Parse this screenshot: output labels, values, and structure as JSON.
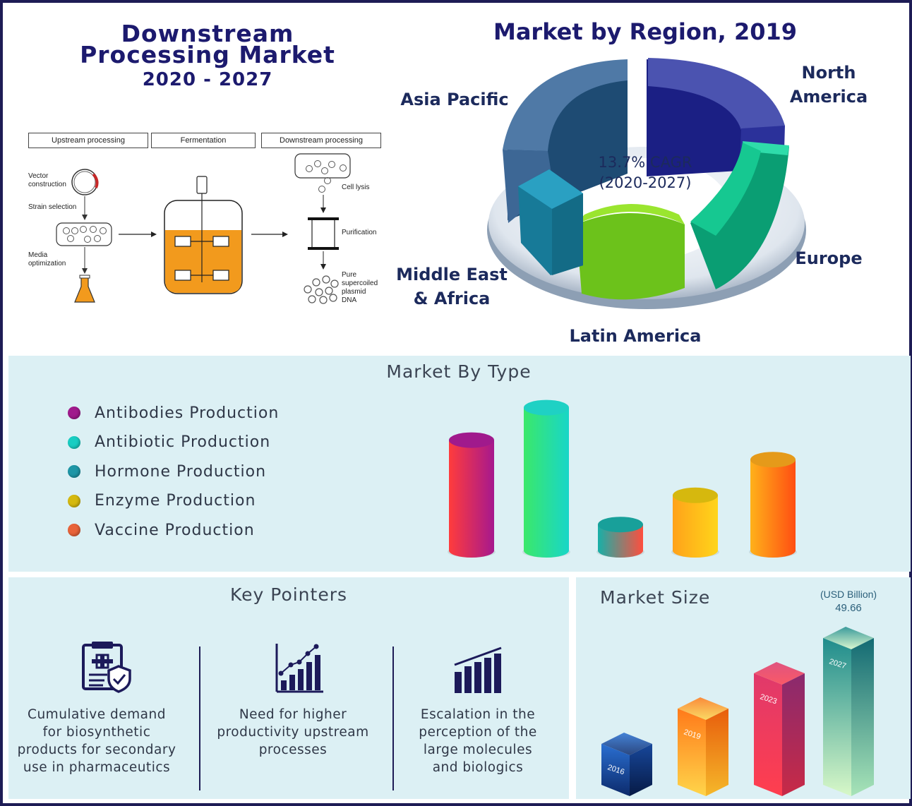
{
  "title": {
    "line1": "Downstream",
    "line2": "Processing Market",
    "years": "2020 - 2027"
  },
  "process": {
    "stage_upstream": "Upstream processing",
    "stage_fermentation": "Fermentation",
    "stage_downstream": "Downstream processing",
    "vector_construction": [
      "Vector",
      "construction"
    ],
    "strain_selection": "Strain selection",
    "media_optimization": [
      "Media",
      "optimization"
    ],
    "cell_lysis": "Cell lysis",
    "purification": "Purification",
    "plasmid": [
      "Pure",
      "supercoiled",
      "plasmid",
      "DNA"
    ],
    "colors": {
      "fill": "#f29a1d",
      "outline": "#222222"
    }
  },
  "region": {
    "title": "Market by Region, 2019",
    "cagr_line1": "13.7% CAGR",
    "cagr_line2": "(2020-2027)",
    "labels": {
      "north_america": [
        "North",
        "America"
      ],
      "asia_pacific": "Asia Pacific",
      "europe": "Europe",
      "mea": [
        "Middle East",
        "& Africa"
      ],
      "latin_america": "Latin America"
    },
    "colors": {
      "north_america": "#23268f",
      "asia_pacific": "#2d5a8a",
      "europe": "#0fb985",
      "mea": "#1c86a8",
      "latin_america": "#7fd41b"
    }
  },
  "type_section": {
    "title": "Market By Type",
    "legend": [
      {
        "label": "Antibodies Production",
        "color": "#a01a8c"
      },
      {
        "label": "Antibiotic Production",
        "color": "#18cdc2"
      },
      {
        "label": "Hormone Production",
        "color": "#1e96a6"
      },
      {
        "label": "Enzyme Production",
        "color": "#d5b90f"
      },
      {
        "label": "Vaccine Production",
        "color": "#e8633a"
      }
    ]
  },
  "chart_data": [
    {
      "type": "bar",
      "title": "Market By Type",
      "categories": [
        "Antibodies Production",
        "Antibiotic Production",
        "Hormone Production",
        "Enzyme Production",
        "Vaccine Production"
      ],
      "values": [
        68,
        88,
        16,
        34,
        56
      ],
      "unit": "relative share (not labeled)",
      "grid": false,
      "legend_position": "left"
    },
    {
      "type": "bar",
      "title": "Market Size",
      "categories": [
        "2016",
        "2019",
        "2023",
        "2027"
      ],
      "values": [
        null,
        null,
        null,
        49.66
      ],
      "unit_label": "(USD Billion)",
      "value_label": "49.66",
      "grid": false
    }
  ],
  "key_pointers": {
    "title": "Key Pointers",
    "items": [
      {
        "icon": "clipboard-shield-icon",
        "lines": [
          "Cumulative demand",
          "for biosynthetic",
          "products for secondary",
          "use in pharmaceutics"
        ]
      },
      {
        "icon": "growth-chart-icon",
        "lines": [
          "Need for higher",
          "productivity upstream",
          "processes"
        ]
      },
      {
        "icon": "bar-chart-icon",
        "lines": [
          "Escalation in the",
          "perception of the",
          "large molecules",
          "and biologics"
        ]
      }
    ],
    "icon_color": "#1c1a5a"
  },
  "market_size": {
    "title": "Market Size",
    "unit": "(USD Billion)",
    "value_2027": "49.66",
    "years": [
      "2016",
      "2019",
      "2023",
      "2027"
    ]
  }
}
